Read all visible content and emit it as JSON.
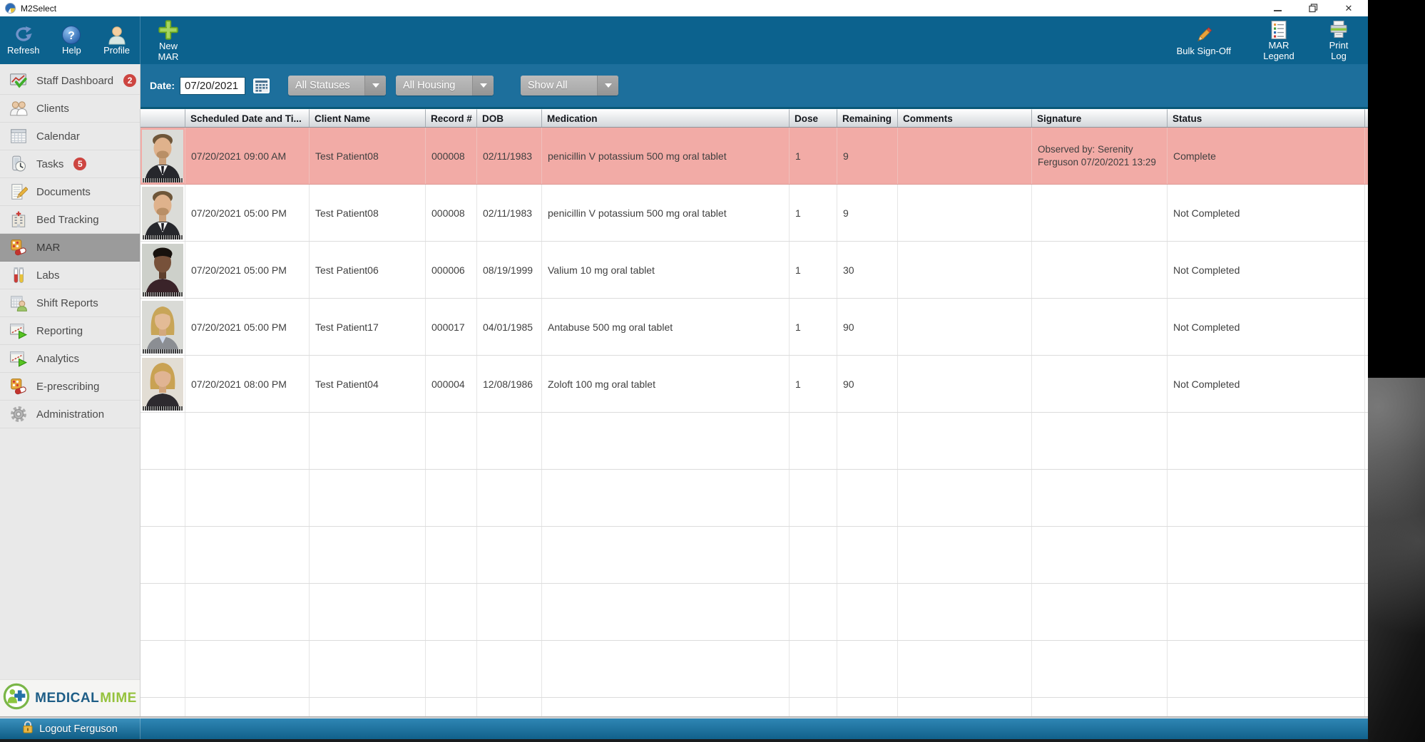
{
  "title_bar": {
    "app_title": "M2Select"
  },
  "toolbar": {
    "refresh": "Refresh",
    "help": "Help",
    "profile": "Profile",
    "new_mar": "New MAR",
    "bulk_sign_off": "Bulk Sign-Off",
    "mar_legend": "MAR Legend",
    "print_log": "Print Log"
  },
  "filters": {
    "date_label": "Date:",
    "date_value": "07/20/2021",
    "status_dropdown": "All Statuses",
    "housing_dropdown": "All Housing",
    "show_dropdown": "Show All"
  },
  "sidebar": {
    "items": [
      {
        "label": "Staff Dashboard",
        "badge": "2",
        "icon": "staff-dashboard-icon"
      },
      {
        "label": "Clients",
        "icon": "clients-icon"
      },
      {
        "label": "Calendar",
        "icon": "calendar-icon"
      },
      {
        "label": "Tasks",
        "badge": "5",
        "icon": "tasks-icon"
      },
      {
        "label": "Documents",
        "icon": "documents-icon"
      },
      {
        "label": "Bed Tracking",
        "icon": "bed-tracking-icon"
      },
      {
        "label": "MAR",
        "icon": "mar-icon",
        "selected": true
      },
      {
        "label": "Labs",
        "icon": "labs-icon"
      },
      {
        "label": "Shift Reports",
        "icon": "shift-reports-icon"
      },
      {
        "label": "Reporting",
        "icon": "reporting-icon"
      },
      {
        "label": "Analytics",
        "icon": "analytics-icon"
      },
      {
        "label": "E-prescribing",
        "icon": "e-prescribing-icon"
      },
      {
        "label": "Administration",
        "icon": "administration-icon"
      }
    ],
    "logo": {
      "word1": "MEDICAL",
      "word2": "MIME"
    },
    "logout_label": "Logout Ferguson"
  },
  "table": {
    "headers": [
      "Scheduled Date and Ti...",
      "Client Name",
      "Record #",
      "DOB",
      "Medication",
      "Dose",
      "Remaining",
      "Comments",
      "Signature",
      "Status"
    ],
    "rows": [
      {
        "avatar": "male-beard-suit-photo",
        "scheduled": "07/20/2021 09:00 AM",
        "client": "Test Patient08",
        "record": "000008",
        "dob": "02/11/1983",
        "medication": "penicillin V potassium 500 mg oral tablet",
        "dose": "1",
        "remaining": "9",
        "comments": "",
        "signature": "Observed by: Serenity Ferguson 07/20/2021 13:29",
        "status": "Complete",
        "highlighted": true
      },
      {
        "avatar": "male-beard-suit-photo",
        "scheduled": "07/20/2021 05:00 PM",
        "client": "Test Patient08",
        "record": "000008",
        "dob": "02/11/1983",
        "medication": "penicillin V potassium 500 mg oral tablet",
        "dose": "1",
        "remaining": "9",
        "comments": "",
        "signature": "",
        "status": "Not Completed",
        "highlighted": false
      },
      {
        "avatar": "male-short-hair-photo",
        "scheduled": "07/20/2021 05:00 PM",
        "client": "Test Patient06",
        "record": "000006",
        "dob": "08/19/1999",
        "medication": "Valium 10 mg oral tablet",
        "dose": "1",
        "remaining": "30",
        "comments": "",
        "signature": "",
        "status": "Not Completed",
        "highlighted": false
      },
      {
        "avatar": "female-blonde-photo",
        "scheduled": "07/20/2021 05:00 PM",
        "client": "Test Patient17",
        "record": "000017",
        "dob": "04/01/1985",
        "medication": "Antabuse 500 mg oral tablet",
        "dose": "1",
        "remaining": "90",
        "comments": "",
        "signature": "",
        "status": "Not Completed",
        "highlighted": false
      },
      {
        "avatar": "female-blonde-bob-photo",
        "scheduled": "07/20/2021 08:00 PM",
        "client": "Test Patient04",
        "record": "000004",
        "dob": "12/08/1986",
        "medication": "Zoloft 100 mg oral tablet",
        "dose": "1",
        "remaining": "90",
        "comments": "",
        "signature": "",
        "status": "Not Completed",
        "highlighted": false
      }
    ]
  },
  "colors": {
    "toolbar_teal": "#0c628e",
    "filterbar_blue": "#1d6f9c",
    "highlight_pink": "#f2aba6",
    "sidebar_gray": "#e9e9e9",
    "selected_gray": "#9b9b9b",
    "badge_red": "#cd4540",
    "logo_blue": "#1d5d86",
    "logo_green": "#95c23d"
  }
}
